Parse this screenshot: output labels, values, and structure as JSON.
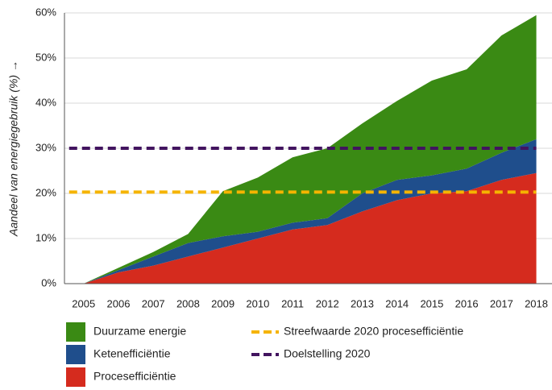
{
  "chart_data": {
    "type": "stacked_area",
    "y_label": "Aandeel van energiegebruik (%) →",
    "x": [
      2005,
      2006,
      2007,
      2008,
      2009,
      2010,
      2011,
      2012,
      2013,
      2014,
      2015,
      2016,
      2017,
      2018
    ],
    "xlim": [
      2004.45,
      2018.45
    ],
    "ylim": [
      0,
      60
    ],
    "yticks": [
      {
        "value": 0,
        "label": "0%"
      },
      {
        "value": 10,
        "label": "10%"
      },
      {
        "value": 20,
        "label": "20%"
      },
      {
        "value": 30,
        "label": "30%"
      },
      {
        "value": 40,
        "label": "40%"
      },
      {
        "value": 50,
        "label": "50%"
      },
      {
        "value": 60,
        "label": "60%"
      }
    ],
    "grid": true,
    "series": [
      {
        "name": "Duurzame energie",
        "color": "#3a8a14",
        "values": [
          0,
          0.5,
          1,
          2,
          10,
          12,
          14.5,
          15.5,
          15.5,
          17.5,
          21,
          22,
          26,
          27.5
        ]
      },
      {
        "name": "Ketenefficiëntie",
        "color": "#1f4e8c",
        "values": [
          0,
          0.5,
          2,
          3,
          2.5,
          1.5,
          1.5,
          1.5,
          4,
          4.5,
          4,
          5,
          6,
          7.5
        ]
      },
      {
        "name": "Procesefficiëntie",
        "color": "#d52b1e",
        "values": [
          0,
          2.5,
          4,
          6,
          8,
          10,
          12,
          13,
          16,
          18.5,
          20,
          20.5,
          23,
          24.5
        ]
      }
    ],
    "reference_lines": [
      {
        "name": "Streefwaarde 2020 procesefficiëntie",
        "color": "#f5b400",
        "value": 20.3
      },
      {
        "name": "Doelstelling 2020",
        "color": "#42145f",
        "value": 30
      }
    ]
  }
}
